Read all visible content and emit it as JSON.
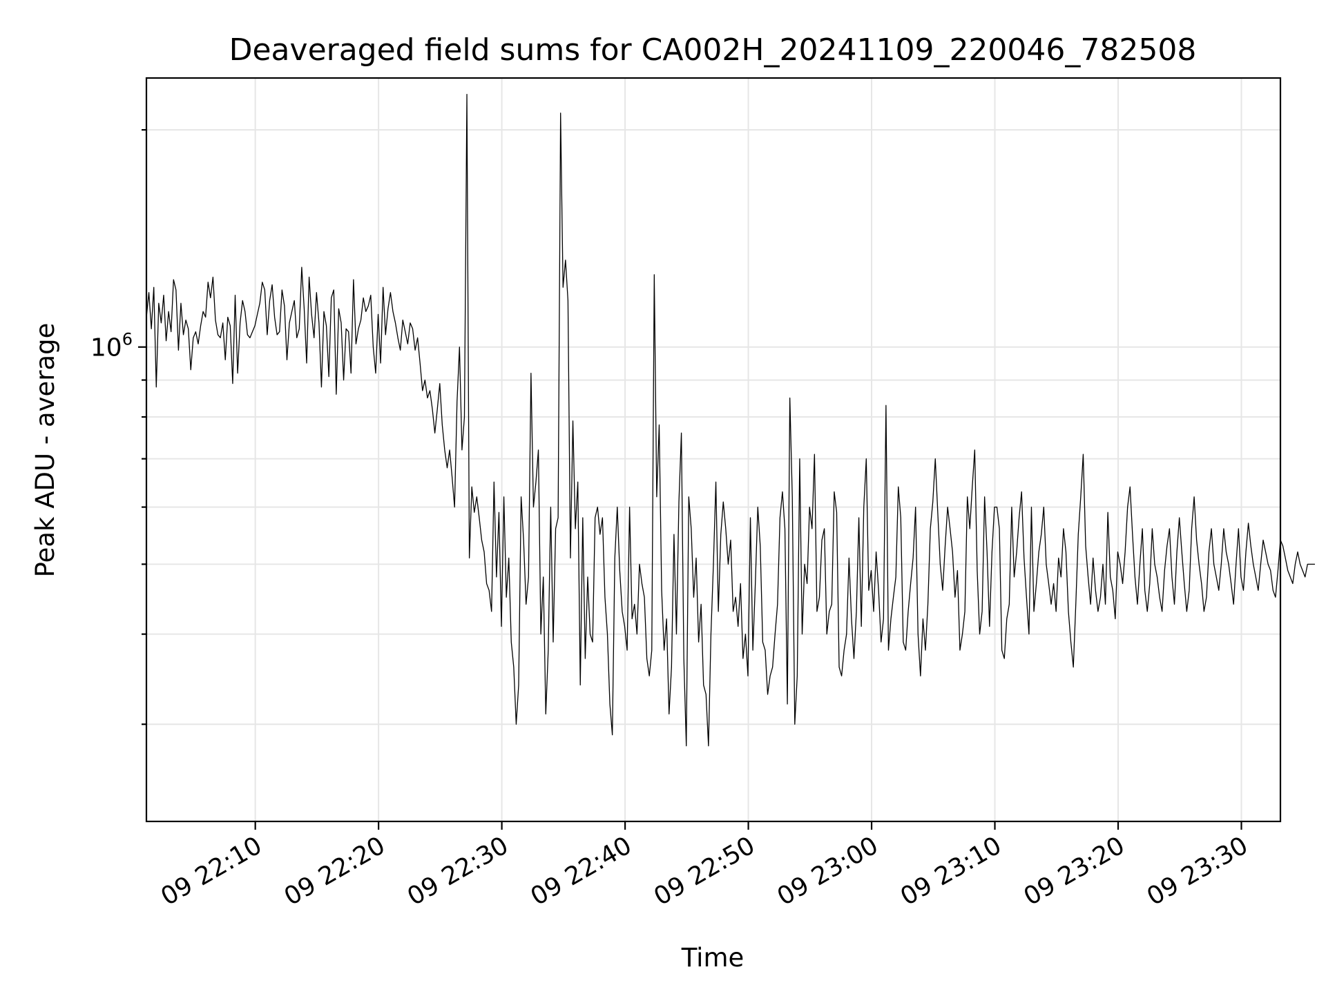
{
  "chart_data": {
    "type": "line",
    "title": "Deaveraged field sums for CA002H_20241109_220046_782508",
    "xlabel": "Time",
    "ylabel": "Peak ADU - average",
    "yscale": "log",
    "grid": true,
    "legend": "none",
    "line_color": "#000000",
    "x_range": [
      "2024-11-09 22:01:10",
      "2024-11-09 23:33:10"
    ],
    "y_range": [
      220000,
      2360000
    ],
    "x_ticks": [
      {
        "label": "09 22:10",
        "value": "22:10"
      },
      {
        "label": "09 22:20",
        "value": "22:20"
      },
      {
        "label": "09 22:30",
        "value": "22:30"
      },
      {
        "label": "09 22:40",
        "value": "22:40"
      },
      {
        "label": "09 22:50",
        "value": "22:50"
      },
      {
        "label": "09 23:00",
        "value": "23:00"
      },
      {
        "label": "09 23:10",
        "value": "23:10"
      },
      {
        "label": "09 23:20",
        "value": "23:20"
      },
      {
        "label": "09 23:30",
        "value": "23:30"
      }
    ],
    "y_major_ticks": [
      {
        "base": "10",
        "exponent": "6",
        "value": 1000000
      }
    ],
    "y_minor_ticks": [
      300000,
      400000,
      500000,
      600000,
      700000,
      800000,
      900000,
      2000000
    ],
    "series": [
      {
        "x_start": "22:01:10",
        "x_step_seconds": 12,
        "values": [
          1100000,
          1190000,
          1060000,
          1210000,
          880000,
          1150000,
          1080000,
          1180000,
          1020000,
          1120000,
          1050000,
          1240000,
          1200000,
          990000,
          1150000,
          1040000,
          1090000,
          1060000,
          930000,
          1030000,
          1050000,
          1010000,
          1070000,
          1120000,
          1100000,
          1230000,
          1170000,
          1250000,
          1090000,
          1040000,
          1030000,
          1080000,
          960000,
          1100000,
          1070000,
          890000,
          1180000,
          920000,
          1080000,
          1160000,
          1120000,
          1040000,
          1030000,
          1050000,
          1070000,
          1110000,
          1150000,
          1230000,
          1200000,
          1040000,
          1160000,
          1220000,
          1100000,
          1040000,
          1050000,
          1200000,
          1140000,
          960000,
          1080000,
          1120000,
          1160000,
          1030000,
          1060000,
          1290000,
          1130000,
          950000,
          1250000,
          1110000,
          1030000,
          1190000,
          1080000,
          880000,
          1120000,
          1070000,
          910000,
          1170000,
          1200000,
          860000,
          1130000,
          1080000,
          900000,
          1060000,
          1050000,
          920000,
          1240000,
          1010000,
          1060000,
          1090000,
          1170000,
          1120000,
          1140000,
          1180000,
          1000000,
          920000,
          1110000,
          950000,
          1210000,
          1040000,
          1130000,
          1190000,
          1120000,
          1080000,
          1030000,
          990000,
          1090000,
          1050000,
          1010000,
          1080000,
          1060000,
          990000,
          1030000,
          950000,
          870000,
          900000,
          850000,
          870000,
          820000,
          760000,
          820000,
          890000,
          780000,
          720000,
          680000,
          720000,
          660000,
          600000,
          840000,
          1000000,
          720000,
          800000,
          2240000,
          510000,
          640000,
          590000,
          620000,
          580000,
          540000,
          520000,
          470000,
          460000,
          430000,
          650000,
          480000,
          590000,
          410000,
          620000,
          450000,
          510000,
          390000,
          360000,
          300000,
          340000,
          620000,
          540000,
          440000,
          480000,
          920000,
          600000,
          650000,
          720000,
          400000,
          480000,
          310000,
          380000,
          600000,
          390000,
          560000,
          580000,
          2110000,
          1210000,
          1320000,
          1160000,
          510000,
          790000,
          560000,
          650000,
          340000,
          580000,
          370000,
          480000,
          400000,
          390000,
          580000,
          600000,
          550000,
          580000,
          450000,
          400000,
          320000,
          290000,
          510000,
          600000,
          490000,
          430000,
          410000,
          380000,
          600000,
          420000,
          440000,
          400000,
          500000,
          470000,
          450000,
          370000,
          350000,
          380000,
          1260000,
          620000,
          780000,
          460000,
          380000,
          420000,
          310000,
          360000,
          550000,
          400000,
          610000,
          760000,
          370000,
          280000,
          620000,
          560000,
          450000,
          510000,
          390000,
          440000,
          340000,
          330000,
          280000,
          400000,
          500000,
          650000,
          430000,
          550000,
          610000,
          560000,
          500000,
          540000,
          430000,
          450000,
          410000,
          470000,
          370000,
          400000,
          350000,
          580000,
          380000,
          470000,
          600000,
          530000,
          390000,
          380000,
          330000,
          350000,
          360000,
          400000,
          440000,
          580000,
          630000,
          560000,
          320000,
          850000,
          620000,
          300000,
          350000,
          700000,
          400000,
          500000,
          470000,
          600000,
          560000,
          710000,
          430000,
          450000,
          540000,
          560000,
          400000,
          430000,
          440000,
          630000,
          590000,
          360000,
          350000,
          380000,
          400000,
          510000,
          420000,
          370000,
          430000,
          580000,
          410000,
          600000,
          700000,
          460000,
          490000,
          430000,
          520000,
          460000,
          390000,
          420000,
          830000,
          380000,
          420000,
          450000,
          480000,
          640000,
          580000,
          390000,
          380000,
          430000,
          470000,
          510000,
          600000,
          400000,
          350000,
          420000,
          380000,
          440000,
          560000,
          610000,
          700000,
          590000,
          500000,
          460000,
          530000,
          600000,
          560000,
          520000,
          450000,
          490000,
          380000,
          400000,
          430000,
          620000,
          560000,
          640000,
          720000,
          490000,
          400000,
          430000,
          620000,
          520000,
          410000,
          520000,
          600000,
          600000,
          560000,
          380000,
          370000,
          420000,
          440000,
          600000,
          480000,
          520000,
          580000,
          630000,
          510000,
          450000,
          400000,
          600000,
          430000,
          470000,
          520000,
          550000,
          600000,
          500000,
          470000,
          440000,
          470000,
          430000,
          510000,
          480000,
          560000,
          520000,
          430000,
          390000,
          360000,
          440000,
          550000,
          620000,
          710000,
          530000,
          480000,
          440000,
          510000,
          460000,
          430000,
          450000,
          500000,
          440000,
          590000,
          480000,
          460000,
          420000,
          520000,
          500000,
          470000,
          520000,
          600000,
          640000,
          550000,
          480000,
          440000,
          500000,
          560000,
          460000,
          430000,
          470000,
          560000,
          500000,
          480000,
          450000,
          430000,
          490000,
          530000,
          560000,
          480000,
          440000,
          520000,
          580000,
          520000,
          470000,
          430000,
          460000,
          560000,
          620000,
          540000,
          500000,
          470000,
          430000,
          450000,
          520000,
          560000,
          500000,
          480000,
          460000,
          500000,
          560000,
          520000,
          500000,
          470000,
          440000,
          500000,
          560000,
          480000,
          460000,
          520000,
          570000,
          530000,
          500000,
          480000,
          460000,
          500000,
          540000,
          520000,
          500000,
          490000,
          460000,
          450000,
          490000,
          540000,
          530000,
          510000,
          490000,
          480000,
          470000,
          500000,
          520000,
          500000,
          490000,
          480000,
          500000,
          500000,
          500000,
          500000
        ]
      }
    ]
  }
}
